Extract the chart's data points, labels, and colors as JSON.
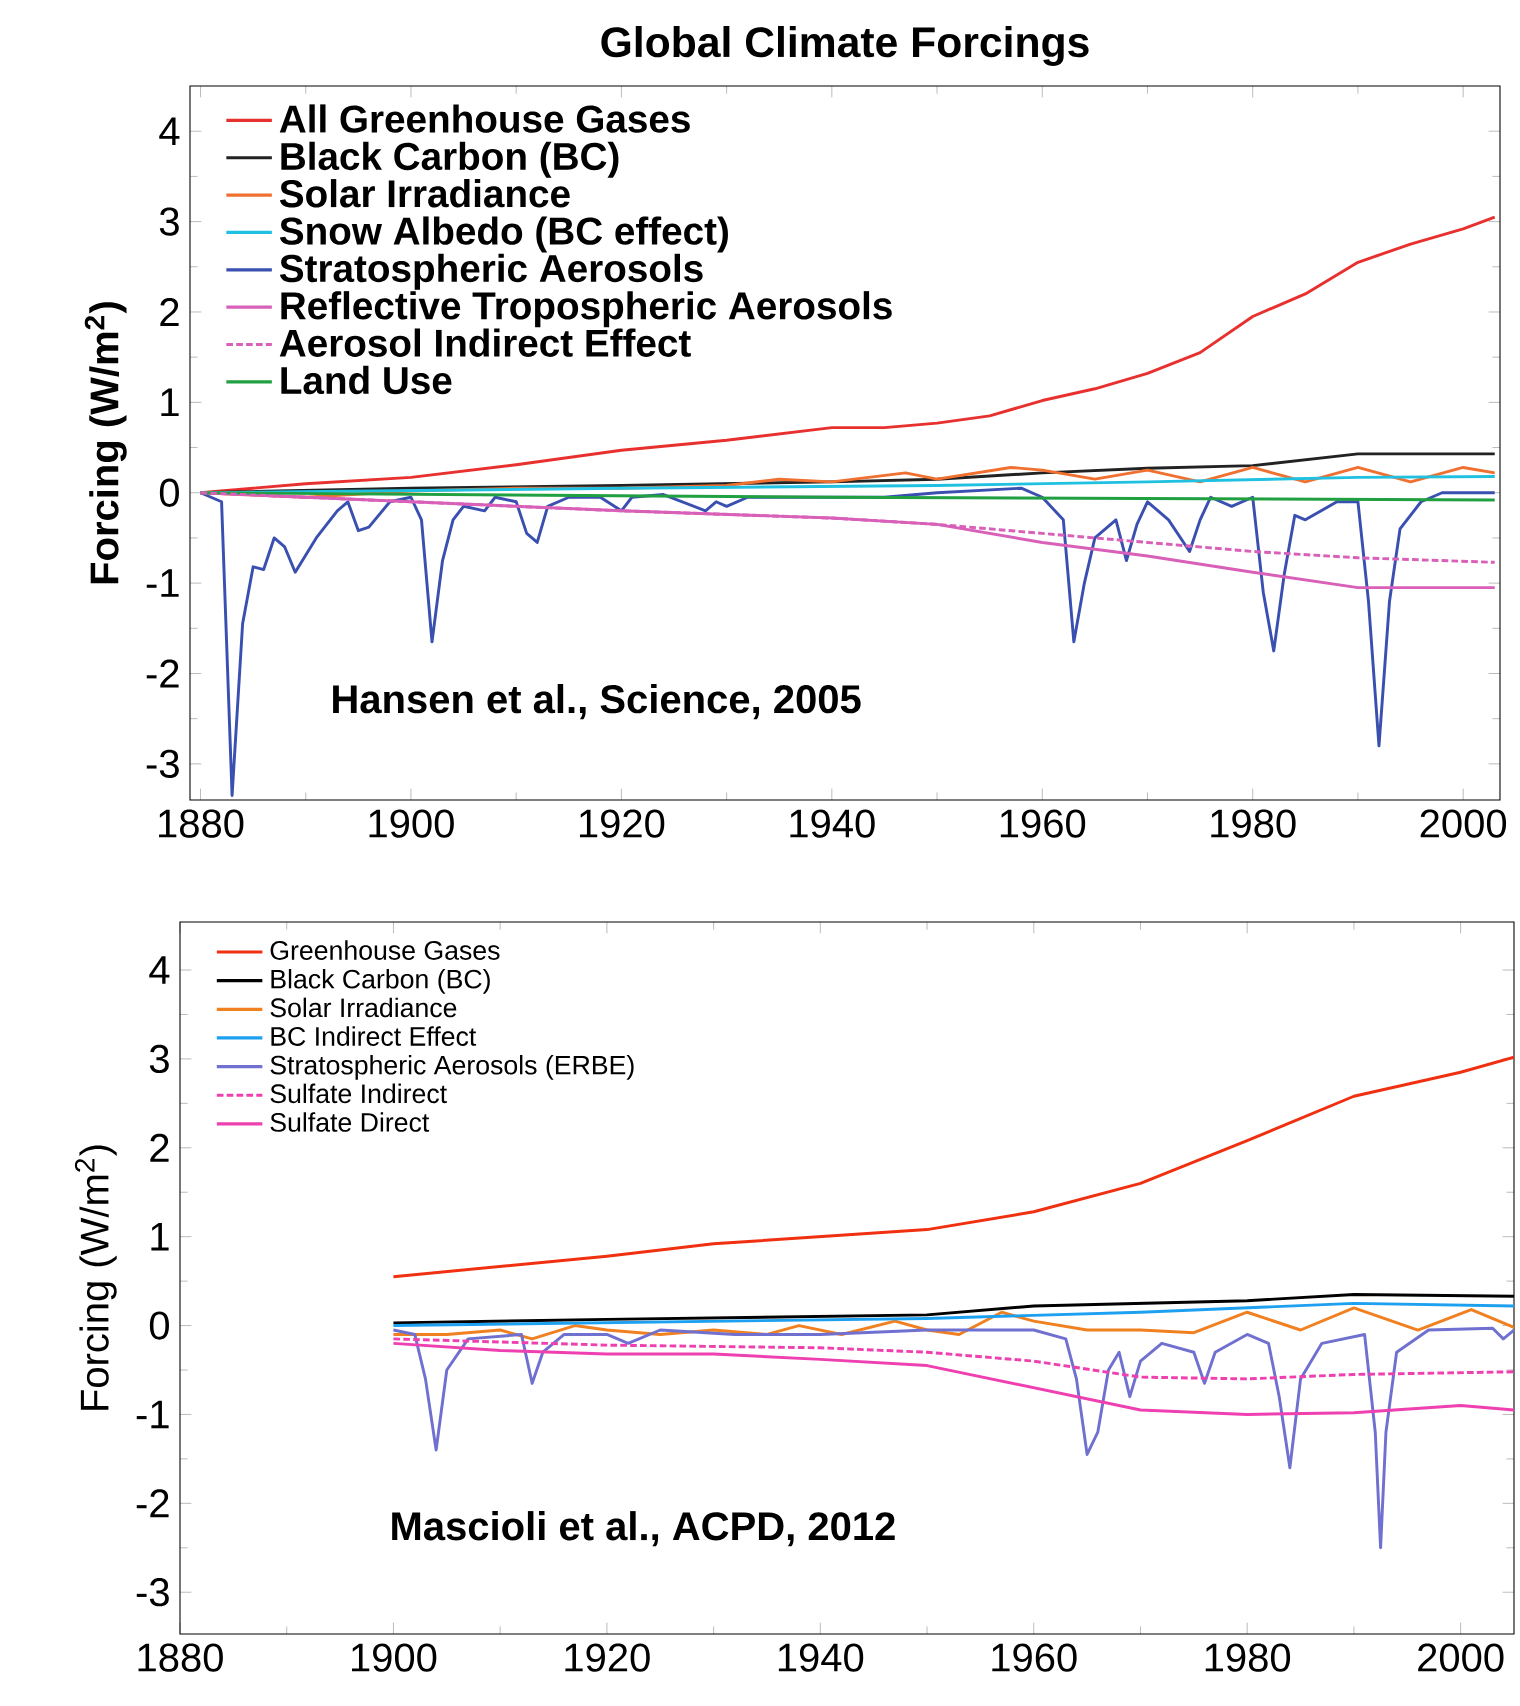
{
  "chart_data": [
    {
      "type": "line",
      "title": "Global Climate Forcings",
      "ylabel": "Forcing (W/m$^{2}$)",
      "xlim": [
        1879,
        2003.5
      ],
      "ylim": [
        -3.4,
        4.5
      ],
      "xticks": [
        1880,
        1900,
        1920,
        1940,
        1960,
        1980,
        2000
      ],
      "yticks": [
        -3,
        -2,
        -1,
        0,
        1,
        2,
        3,
        4
      ],
      "legend": "top left",
      "grid": false,
      "annotations": [
        "Hansen et al., Science, 2005"
      ],
      "series": [
        {
          "name": "All Greenhouse Gases",
          "color": "#e8312f",
          "x": [
            1880,
            1890,
            1900,
            1910,
            1920,
            1930,
            1940,
            1945,
            1950,
            1955,
            1960,
            1965,
            1970,
            1975,
            1980,
            1985,
            1990,
            1995,
            2000,
            2003
          ],
          "values": [
            0,
            0.1,
            0.17,
            0.31,
            0.47,
            0.58,
            0.72,
            0.72,
            0.77,
            0.85,
            1.02,
            1.15,
            1.32,
            1.55,
            1.95,
            2.2,
            2.55,
            2.75,
            2.92,
            3.05
          ]
        },
        {
          "name": "Black Carbon (BC)",
          "color": "#222222",
          "x": [
            1880,
            1900,
            1920,
            1940,
            1950,
            1960,
            1970,
            1980,
            1990,
            2003
          ],
          "values": [
            0,
            0.05,
            0.08,
            0.12,
            0.15,
            0.22,
            0.27,
            0.3,
            0.43,
            0.43
          ]
        },
        {
          "name": "Solar Irradiance",
          "color": "#f07030",
          "x": [
            1880,
            1890,
            1900,
            1910,
            1920,
            1930,
            1935,
            1940,
            1947,
            1950,
            1957,
            1960,
            1965,
            1970,
            1975,
            1980,
            1985,
            1990,
            1995,
            2000,
            2003
          ],
          "values": [
            0,
            -0.05,
            0.02,
            0.05,
            0.05,
            0.08,
            0.15,
            0.12,
            0.22,
            0.15,
            0.28,
            0.25,
            0.15,
            0.25,
            0.12,
            0.28,
            0.12,
            0.28,
            0.12,
            0.28,
            0.22
          ]
        },
        {
          "name": "Snow Albedo (BC effect)",
          "color": "#20c0e0",
          "x": [
            1880,
            1920,
            1950,
            1970,
            1990,
            2003
          ],
          "values": [
            0,
            0.05,
            0.08,
            0.12,
            0.17,
            0.18
          ]
        },
        {
          "name": "Stratospheric Aerosols",
          "color": "#3a50b0",
          "x": [
            1880,
            1882,
            1883,
            1884,
            1885,
            1886,
            1887,
            1888,
            1889,
            1891,
            1893,
            1894,
            1895,
            1896,
            1898,
            1900,
            1901,
            1902,
            1903,
            1904,
            1905,
            1907,
            1908,
            1910,
            1911,
            1912,
            1913,
            1915,
            1918,
            1920,
            1921,
            1924,
            1928,
            1929,
            1930,
            1932,
            1936,
            1940,
            1945,
            1950,
            1958,
            1960,
            1962,
            1963,
            1964,
            1965,
            1967,
            1968,
            1969,
            1970,
            1972,
            1974,
            1975,
            1976,
            1978,
            1980,
            1981,
            1982,
            1983,
            1984,
            1985,
            1988,
            1990,
            1991,
            1992,
            1993,
            1994,
            1996,
            1998,
            2003
          ],
          "values": [
            0,
            -0.1,
            -3.35,
            -1.45,
            -0.82,
            -0.85,
            -0.5,
            -0.6,
            -0.88,
            -0.5,
            -0.2,
            -0.1,
            -0.42,
            -0.38,
            -0.1,
            -0.05,
            -0.3,
            -1.65,
            -0.75,
            -0.3,
            -0.15,
            -0.2,
            -0.05,
            -0.1,
            -0.45,
            -0.55,
            -0.15,
            -0.05,
            -0.05,
            -0.2,
            -0.05,
            -0.02,
            -0.2,
            -0.1,
            -0.15,
            -0.05,
            -0.05,
            -0.05,
            -0.05,
            0,
            0.05,
            -0.05,
            -0.3,
            -1.65,
            -1.0,
            -0.5,
            -0.3,
            -0.75,
            -0.35,
            -0.1,
            -0.3,
            -0.65,
            -0.3,
            -0.05,
            -0.15,
            -0.05,
            -1.1,
            -1.75,
            -0.9,
            -0.25,
            -0.3,
            -0.1,
            -0.1,
            -1.2,
            -2.8,
            -1.2,
            -0.4,
            -0.1,
            0,
            0
          ]
        },
        {
          "name": "Reflective Tropospheric Aerosols",
          "color": "#d860b8",
          "x": [
            1880,
            1900,
            1920,
            1940,
            1950,
            1960,
            1970,
            1980,
            1990,
            2003
          ],
          "values": [
            0,
            -0.1,
            -0.2,
            -0.28,
            -0.35,
            -0.55,
            -0.7,
            -0.88,
            -1.05,
            -1.05
          ]
        },
        {
          "name": "Aerosol Indirect Effect",
          "color": "#d860b8",
          "line_style": "dashed",
          "x": [
            1880,
            1900,
            1920,
            1940,
            1950,
            1960,
            1970,
            1980,
            1990,
            2003
          ],
          "values": [
            0,
            -0.1,
            -0.2,
            -0.28,
            -0.35,
            -0.45,
            -0.55,
            -0.65,
            -0.72,
            -0.77
          ]
        },
        {
          "name": "Land Use",
          "color": "#20a040",
          "x": [
            1880,
            1940,
            2003
          ],
          "values": [
            0,
            -0.05,
            -0.08
          ]
        }
      ]
    },
    {
      "type": "line",
      "ylabel": "Forcing (W/m$^{2}$)",
      "xlim": [
        1880,
        2005
      ],
      "ylim": [
        -3.47,
        4.54
      ],
      "xticks": [
        1880,
        1900,
        1920,
        1940,
        1960,
        1980,
        2000
      ],
      "yticks": [
        -3,
        -2,
        -1,
        0,
        1,
        2,
        3,
        4
      ],
      "legend": "top left",
      "grid": false,
      "annotations": [
        "Mascioli et al., ACPD, 2012"
      ],
      "series": [
        {
          "name": "Greenhouse Gases",
          "color": "#f03010",
          "x": [
            1900,
            1920,
            1930,
            1940,
            1950,
            1960,
            1970,
            1980,
            1990,
            2000,
            2005
          ],
          "values": [
            0.55,
            0.78,
            0.92,
            1.0,
            1.08,
            1.28,
            1.6,
            2.08,
            2.58,
            2.85,
            3.02
          ]
        },
        {
          "name": "Black Carbon (BC)",
          "color": "#000000",
          "x": [
            1900,
            1920,
            1950,
            1960,
            1980,
            1990,
            2005
          ],
          "values": [
            0.03,
            0.07,
            0.12,
            0.22,
            0.28,
            0.35,
            0.33
          ]
        },
        {
          "name": "Solar Irradiance",
          "color": "#f08020",
          "x": [
            1900,
            1905,
            1910,
            1913,
            1917,
            1920,
            1925,
            1930,
            1935,
            1938,
            1942,
            1947,
            1950,
            1953,
            1957,
            1960,
            1965,
            1970,
            1975,
            1980,
            1985,
            1990,
            1996,
            2001,
            2005
          ],
          "values": [
            -0.1,
            -0.1,
            -0.05,
            -0.15,
            0.0,
            -0.05,
            -0.1,
            -0.05,
            -0.1,
            0.0,
            -0.1,
            0.05,
            -0.05,
            -0.1,
            0.15,
            0.05,
            -0.05,
            -0.05,
            -0.08,
            0.15,
            -0.05,
            0.2,
            -0.05,
            0.18,
            -0.02
          ]
        },
        {
          "name": "BC Indirect Effect",
          "color": "#1ea0f0",
          "x": [
            1900,
            1950,
            1970,
            1990,
            2005
          ],
          "values": [
            0.0,
            0.08,
            0.15,
            0.25,
            0.22
          ]
        },
        {
          "name": "Stratospheric Aerosols (ERBE)",
          "color": "#7070d0",
          "x": [
            1900,
            1902,
            1903,
            1904,
            1905,
            1907,
            1912,
            1913,
            1914,
            1916,
            1920,
            1922,
            1925,
            1932,
            1935,
            1940,
            1950,
            1955,
            1960,
            1963,
            1964,
            1965,
            1966,
            1967,
            1968,
            1969,
            1970,
            1972,
            1975,
            1976,
            1977,
            1980,
            1982,
            1983,
            1984,
            1985,
            1987,
            1991,
            1992,
            1992.5,
            1993,
            1994,
            1997,
            2003,
            2004,
            2005
          ],
          "values": [
            -0.05,
            -0.1,
            -0.6,
            -1.4,
            -0.5,
            -0.15,
            -0.1,
            -0.65,
            -0.3,
            -0.1,
            -0.1,
            -0.2,
            -0.05,
            -0.1,
            -0.1,
            -0.1,
            -0.05,
            -0.05,
            -0.05,
            -0.15,
            -0.6,
            -1.45,
            -1.2,
            -0.5,
            -0.3,
            -0.8,
            -0.4,
            -0.2,
            -0.3,
            -0.65,
            -0.3,
            -0.1,
            -0.2,
            -0.8,
            -1.6,
            -0.6,
            -0.2,
            -0.1,
            -1.2,
            -2.5,
            -1.2,
            -0.3,
            -0.05,
            -0.03,
            -0.15,
            -0.05
          ]
        },
        {
          "name": "Sulfate Indirect",
          "color": "#ee40b0",
          "line_style": "dashed",
          "x": [
            1900,
            1920,
            1940,
            1950,
            1960,
            1970,
            1980,
            1990,
            2005
          ],
          "values": [
            -0.15,
            -0.22,
            -0.25,
            -0.3,
            -0.4,
            -0.58,
            -0.6,
            -0.55,
            -0.52
          ]
        },
        {
          "name": "Sulfate Direct",
          "color": "#ee40b0",
          "x": [
            1900,
            1910,
            1920,
            1930,
            1940,
            1950,
            1960,
            1970,
            1980,
            1990,
            2000,
            2005
          ],
          "values": [
            -0.2,
            -0.28,
            -0.32,
            -0.32,
            -0.38,
            -0.45,
            -0.7,
            -0.95,
            -1.0,
            -0.98,
            -0.9,
            -0.95
          ]
        }
      ]
    }
  ]
}
